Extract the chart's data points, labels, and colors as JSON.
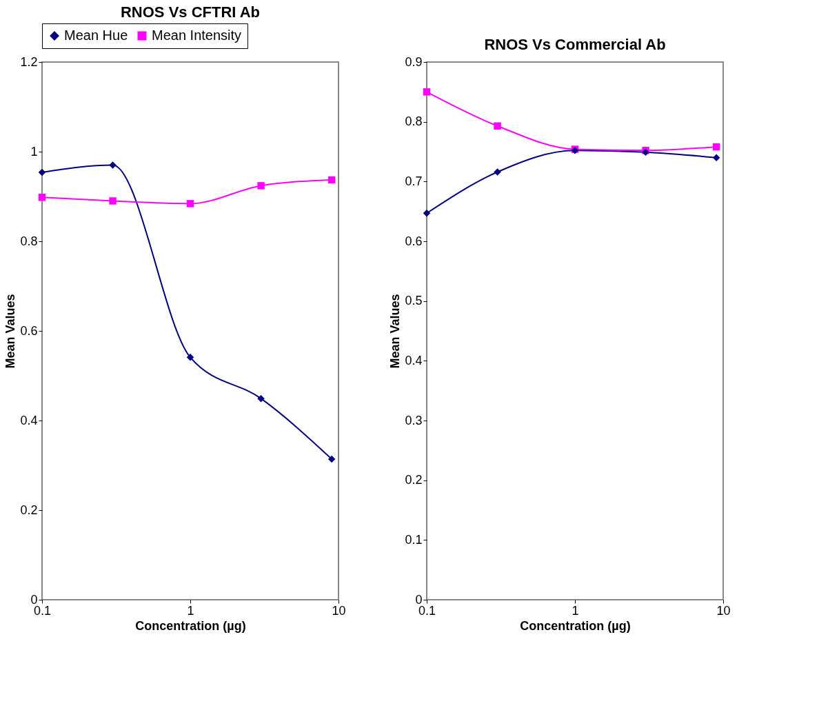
{
  "chart_data": [
    {
      "type": "line",
      "title": "RNOS Vs CFTRI Ab",
      "xlabel": "Concentration (µg)",
      "ylabel": "Mean Values",
      "x": [
        0.1,
        0.3,
        1,
        3,
        9
      ],
      "log": "x",
      "xlim": [
        0.1,
        10
      ],
      "xticks": [
        0.1,
        1,
        10
      ],
      "ylim": [
        0,
        1.2
      ],
      "yticks": [
        0,
        0.2,
        0.4,
        0.6,
        0.8,
        1,
        1.2
      ],
      "grid": false,
      "legend": "top",
      "series": [
        {
          "name": "Mean Hue",
          "color": "#000080",
          "marker": "diamond",
          "values": [
            0.954,
            0.97,
            0.541,
            0.449,
            0.314
          ]
        },
        {
          "name": "Mean Intensity",
          "color": "#ff00ff",
          "marker": "square",
          "values": [
            0.898,
            0.89,
            0.884,
            0.924,
            0.937
          ]
        }
      ]
    },
    {
      "type": "line",
      "title": "RNOS Vs Commercial Ab",
      "xlabel": "Concentration (µg)",
      "ylabel": "Mean Values",
      "x": [
        0.1,
        0.3,
        1,
        3,
        9
      ],
      "log": "x",
      "xlim": [
        0.1,
        10
      ],
      "xticks": [
        0.1,
        1,
        10
      ],
      "ylim": [
        0,
        0.9
      ],
      "yticks": [
        0,
        0.1,
        0.2,
        0.3,
        0.4,
        0.5,
        0.6,
        0.7,
        0.8,
        0.9
      ],
      "grid": false,
      "legend": false,
      "series": [
        {
          "color": "#000080",
          "marker": "diamond",
          "values": [
            0.647,
            0.716,
            0.752,
            0.749,
            0.74
          ]
        },
        {
          "color": "#ff00ff",
          "marker": "square",
          "values": [
            0.85,
            0.793,
            0.754,
            0.752,
            0.758
          ]
        }
      ]
    }
  ]
}
